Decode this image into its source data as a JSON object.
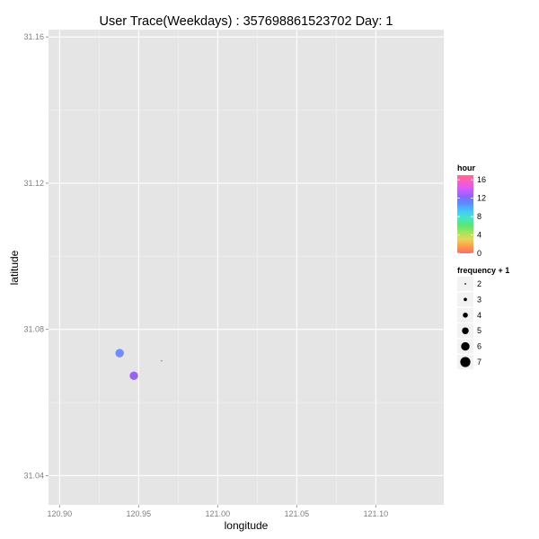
{
  "chart_data": {
    "type": "scatter",
    "title": "User Trace(Weekdays) : 357698861523702  Day:  1",
    "xlabel": "longitude",
    "ylabel": "latitude",
    "xlim": [
      120.893,
      121.143
    ],
    "ylim": [
      31.032,
      31.162
    ],
    "x_ticks": [
      120.9,
      120.95,
      121.0,
      121.05,
      121.1
    ],
    "x_tick_labels": [
      "120.90",
      "120.95",
      "121.00",
      "121.05",
      "121.10"
    ],
    "y_ticks": [
      31.04,
      31.08,
      31.12,
      31.16
    ],
    "y_tick_labels": [
      "31.04",
      "31.08",
      "31.12",
      "31.16"
    ],
    "grid": true,
    "legend_position": "right",
    "colors": {
      "panel": "#e5e5e5",
      "grid_major": "#ffffff",
      "grid_minor": "#f2f2f2"
    },
    "points": [
      {
        "x": 120.938,
        "y": 31.0735,
        "hour": 10,
        "size": 6,
        "color": "#6f8dfc"
      },
      {
        "x": 120.947,
        "y": 31.0673,
        "hour": 14,
        "size": 6,
        "color": "#9a62f2"
      },
      {
        "x": 120.9645,
        "y": 31.0714,
        "hour": 9,
        "size": 2,
        "color": "#58a8f8"
      }
    ],
    "color_legend": {
      "title": "hour",
      "labels": [
        "16",
        "12",
        "8",
        "4",
        "0"
      ],
      "values": [
        16,
        12,
        8,
        4,
        0
      ],
      "min": 0,
      "max": 17,
      "gradient": [
        "#ff6a6a",
        "#ff9d46",
        "#e6d65a",
        "#9be65a",
        "#55e67a",
        "#46e6c8",
        "#46c3ff",
        "#5a8cff",
        "#8c64ff",
        "#d25aff",
        "#ff5ac8",
        "#ff6a8c"
      ]
    },
    "size_legend": {
      "title": "frequency + 1",
      "items": [
        {
          "label": "2",
          "value": 2
        },
        {
          "label": "3",
          "value": 3
        },
        {
          "label": "4",
          "value": 4
        },
        {
          "label": "5",
          "value": 5
        },
        {
          "label": "6",
          "value": 6
        },
        {
          "label": "7",
          "value": 7
        }
      ]
    }
  }
}
